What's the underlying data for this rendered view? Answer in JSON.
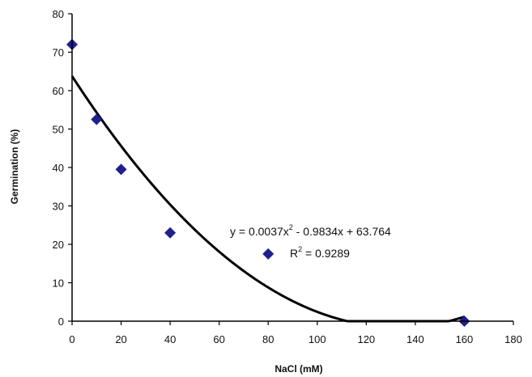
{
  "chart_data": {
    "type": "scatter",
    "title": "",
    "xlabel": "NaCl (mM)",
    "ylabel": "Germination (%)",
    "xlim": [
      0,
      180
    ],
    "ylim": [
      0,
      80
    ],
    "x_ticks": [
      0,
      20,
      40,
      60,
      80,
      100,
      120,
      140,
      160,
      180
    ],
    "y_ticks": [
      0,
      10,
      20,
      30,
      40,
      50,
      60,
      70,
      80
    ],
    "grid": false,
    "legend": "none",
    "marker": "diamond",
    "marker_color": "#1f1f8f",
    "series": [
      {
        "x": [
          0,
          10,
          20,
          40,
          80,
          160
        ],
        "y": [
          72,
          52.5,
          39.5,
          23,
          17.5,
          0
        ]
      }
    ],
    "trendline": {
      "type": "polynomial",
      "coefficients": {
        "a": 0.0037,
        "b": -0.9834,
        "c": 63.764
      },
      "equation_prefix": "y = 0.0037x",
      "equation_exp": "2",
      "equation_suffix": " - 0.9834x + 63.764",
      "r2_prefix": "R",
      "r2_exp": "2",
      "r2_suffix": " = 0.9289",
      "color": "#000000"
    }
  }
}
